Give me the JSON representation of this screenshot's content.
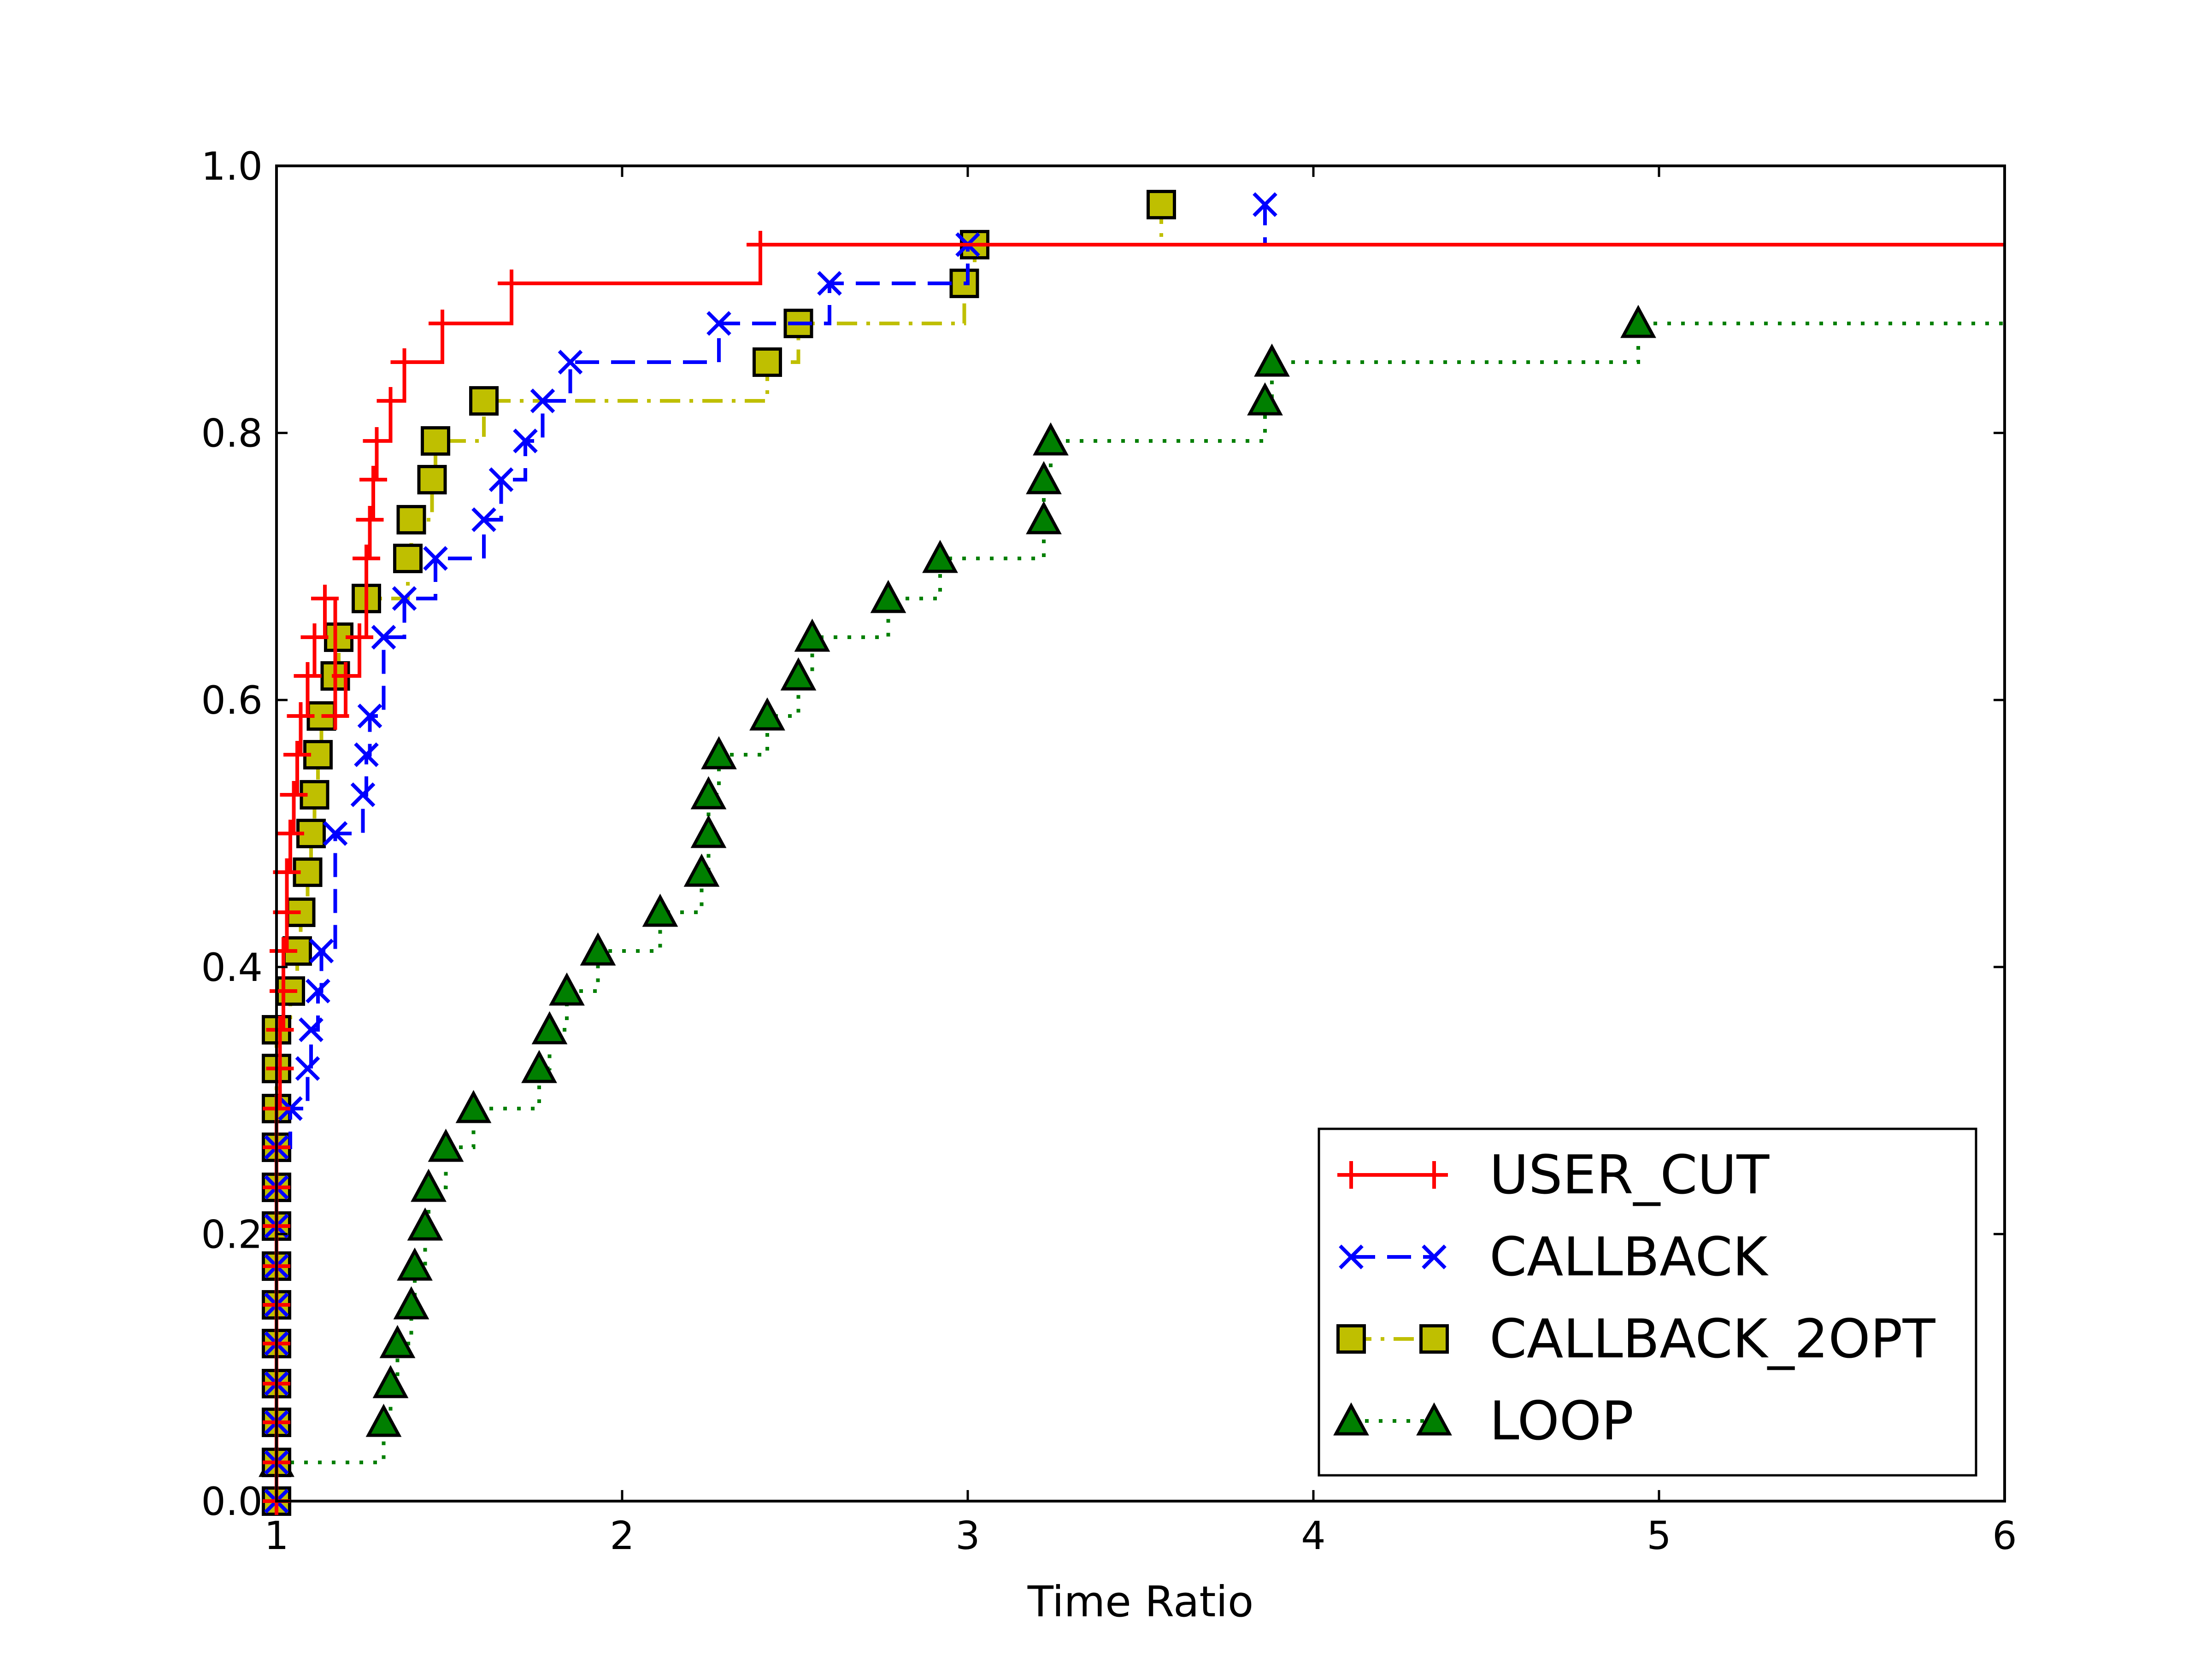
{
  "chart_data": {
    "type": "line",
    "title": "",
    "xlabel": "Time Ratio",
    "ylabel": "",
    "xlim": [
      1,
      6
    ],
    "ylim": [
      0.0,
      1.0
    ],
    "xticks": [
      "1",
      "2",
      "3",
      "4",
      "5",
      "6"
    ],
    "yticks": [
      "0.0",
      "0.2",
      "0.4",
      "0.6",
      "0.8",
      "1.0"
    ],
    "grid": false,
    "legend_position": "lower-right",
    "series": [
      {
        "name": "USER_CUT",
        "color": "#ff0000",
        "line": "solid",
        "marker": "plus",
        "x": [
          1.0,
          1.0,
          1.0,
          1.0,
          1.0,
          1.0,
          1.0,
          1.0,
          1.0,
          1.0,
          1.0,
          1.01,
          1.01,
          1.02,
          1.02,
          1.03,
          1.03,
          1.04,
          1.05,
          1.06,
          1.07,
          1.09,
          1.11,
          1.14,
          1.17,
          1.2,
          1.24,
          1.26,
          1.27,
          1.28,
          1.29,
          1.33,
          1.37,
          1.48,
          1.68,
          2.4
        ],
        "y": [
          0.0,
          0.029,
          0.059,
          0.088,
          0.118,
          0.147,
          0.176,
          0.206,
          0.235,
          0.265,
          0.294,
          0.324,
          0.353,
          0.382,
          0.412,
          0.441,
          0.471,
          0.5,
          0.529,
          0.559,
          0.588,
          0.618,
          0.647,
          0.676,
          0.588,
          0.618,
          0.647,
          0.706,
          0.735,
          0.765,
          0.794,
          0.824,
          0.853,
          0.882,
          0.912,
          0.941
        ],
        "end_x": 6
      },
      {
        "name": "CALLBACK",
        "color": "#0000ff",
        "line": "dashed",
        "marker": "x",
        "x": [
          1.0,
          1.0,
          1.0,
          1.0,
          1.0,
          1.0,
          1.0,
          1.0,
          1.0,
          1.0,
          1.04,
          1.09,
          1.1,
          1.12,
          1.13,
          1.17,
          1.25,
          1.26,
          1.27,
          1.31,
          1.37,
          1.46,
          1.6,
          1.65,
          1.72,
          1.77,
          1.85,
          2.28,
          2.6,
          3.0,
          3.86
        ],
        "y": [
          0.0,
          0.029,
          0.059,
          0.088,
          0.118,
          0.147,
          0.176,
          0.206,
          0.235,
          0.265,
          0.294,
          0.324,
          0.353,
          0.382,
          0.412,
          0.5,
          0.529,
          0.559,
          0.588,
          0.647,
          0.676,
          0.706,
          0.735,
          0.765,
          0.794,
          0.824,
          0.853,
          0.882,
          0.912,
          0.941,
          0.971
        ],
        "end_x": 3.86
      },
      {
        "name": "CALLBACK_2OPT",
        "color": "#bfbf00",
        "line": "dashdot",
        "marker": "square",
        "x": [
          1.0,
          1.0,
          1.0,
          1.0,
          1.0,
          1.0,
          1.0,
          1.0,
          1.0,
          1.0,
          1.0,
          1.0,
          1.0,
          1.04,
          1.06,
          1.07,
          1.09,
          1.1,
          1.11,
          1.12,
          1.13,
          1.17,
          1.18,
          1.26,
          1.38,
          1.39,
          1.45,
          1.46,
          1.6,
          2.42,
          2.51,
          2.99,
          3.02,
          3.56
        ],
        "y": [
          0.0,
          0.029,
          0.059,
          0.088,
          0.118,
          0.147,
          0.176,
          0.206,
          0.235,
          0.265,
          0.294,
          0.324,
          0.353,
          0.382,
          0.412,
          0.441,
          0.471,
          0.5,
          0.529,
          0.559,
          0.588,
          0.618,
          0.647,
          0.676,
          0.706,
          0.735,
          0.765,
          0.794,
          0.824,
          0.853,
          0.882,
          0.912,
          0.941,
          0.971
        ],
        "end_x": 3.56
      },
      {
        "name": "LOOP",
        "color": "#007f00",
        "line": "dotted",
        "marker": "triangle",
        "x": [
          1.0,
          1.31,
          1.33,
          1.35,
          1.39,
          1.4,
          1.43,
          1.44,
          1.49,
          1.57,
          1.76,
          1.79,
          1.84,
          1.93,
          2.11,
          2.23,
          2.25,
          2.25,
          2.28,
          2.42,
          2.51,
          2.55,
          2.77,
          2.92,
          3.22,
          3.22,
          3.24,
          3.86,
          3.88,
          4.94
        ],
        "y": [
          0.029,
          0.059,
          0.088,
          0.118,
          0.147,
          0.176,
          0.206,
          0.235,
          0.265,
          0.294,
          0.324,
          0.353,
          0.382,
          0.412,
          0.441,
          0.471,
          0.5,
          0.529,
          0.559,
          0.588,
          0.618,
          0.647,
          0.676,
          0.706,
          0.735,
          0.765,
          0.794,
          0.824,
          0.853,
          0.882
        ],
        "end_x": 6
      }
    ]
  }
}
